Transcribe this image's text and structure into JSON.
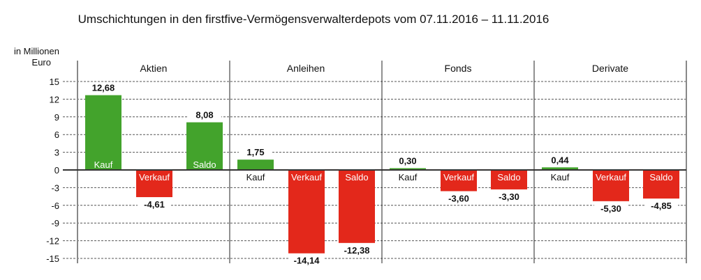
{
  "chart_data": {
    "type": "bar",
    "title": "Umschichtungen in den firstfive-Vermögensverwalterdepots vom 07.11.2016 – 11.11.2016",
    "ylabel": [
      "in Millionen",
      "Euro"
    ],
    "ylim": [
      -15,
      15
    ],
    "yticks": [
      15,
      12,
      9,
      6,
      3,
      0,
      -3,
      -6,
      -9,
      -12,
      -15
    ],
    "grid": true,
    "colors": {
      "positive": "#43a32c",
      "negative": "#e3281b"
    },
    "groups": [
      {
        "name": "Aktien",
        "bars": [
          {
            "label": "Kauf",
            "value": 12.68,
            "text": "12,68"
          },
          {
            "label": "Verkauf",
            "value": -4.61,
            "text": "-4,61"
          },
          {
            "label": "Saldo",
            "value": 8.08,
            "text": "8,08"
          }
        ]
      },
      {
        "name": "Anleihen",
        "bars": [
          {
            "label": "Kauf",
            "value": 1.75,
            "text": "1,75"
          },
          {
            "label": "Verkauf",
            "value": -14.14,
            "text": "-14,14"
          },
          {
            "label": "Saldo",
            "value": -12.38,
            "text": "-12,38"
          }
        ]
      },
      {
        "name": "Fonds",
        "bars": [
          {
            "label": "Kauf",
            "value": 0.3,
            "text": "0,30"
          },
          {
            "label": "Verkauf",
            "value": -3.6,
            "text": "-3,60"
          },
          {
            "label": "Saldo",
            "value": -3.3,
            "text": "-3,30"
          }
        ]
      },
      {
        "name": "Derivate",
        "bars": [
          {
            "label": "Kauf",
            "value": 0.44,
            "text": "0,44"
          },
          {
            "label": "Verkauf",
            "value": -5.3,
            "text": "-5,30"
          },
          {
            "label": "Saldo",
            "value": -4.85,
            "text": "-4,85"
          }
        ]
      }
    ]
  }
}
